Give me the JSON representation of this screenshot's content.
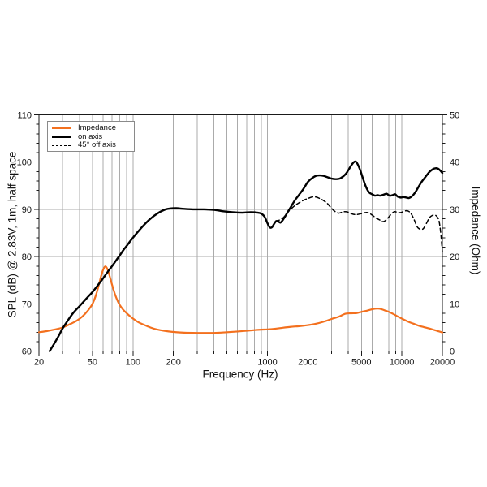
{
  "chart_data": {
    "type": "line",
    "title": "",
    "x_axis": {
      "label": "Frequency (Hz)",
      "scale": "log",
      "min": 20,
      "max": 20000,
      "major_ticks": [
        20,
        50,
        100,
        200,
        1000,
        2000,
        5000,
        10000,
        20000
      ],
      "grid_ticks": [
        30,
        40,
        50,
        60,
        70,
        80,
        90,
        100,
        200,
        300,
        400,
        500,
        600,
        700,
        800,
        900,
        1000,
        2000,
        3000,
        4000,
        5000,
        6000,
        7000,
        8000,
        9000,
        10000
      ]
    },
    "y_left": {
      "label": "SPL (dB) @ 2.83V, 1m, half space",
      "min": 60,
      "max": 110,
      "major_ticks": [
        60,
        70,
        80,
        90,
        100,
        110
      ],
      "minor_step": 2,
      "grid_lines": [
        70,
        80,
        90,
        100
      ]
    },
    "y_right": {
      "label": "Impedance (Ohm)",
      "min": 0,
      "max": 50,
      "major_ticks": [
        0,
        10,
        20,
        30,
        40,
        50
      ],
      "minor_step": 2
    },
    "legend": {
      "position": "top-left",
      "items": [
        {
          "label": "Impedance",
          "color": "#f3701e",
          "style": "solid"
        },
        {
          "label": "on axis",
          "color": "#000000",
          "style": "solid"
        },
        {
          "label": "45° off axis",
          "color": "#000000",
          "style": "dashed"
        }
      ]
    },
    "colors": {
      "impedance_curve": "#f3701e",
      "spl_curves": "#000000",
      "grid": "#ababab",
      "frame": "#1a1a1a",
      "background": "#ffffff"
    },
    "grid": true,
    "series": [
      {
        "name": "Impedance",
        "axis": "right",
        "unit": "Ohm",
        "style": "solid",
        "color": "#f3701e",
        "width": 2.2,
        "points": [
          [
            20,
            4.0
          ],
          [
            23,
            4.25
          ],
          [
            26,
            4.55
          ],
          [
            30,
            5.0
          ],
          [
            34,
            5.7
          ],
          [
            38,
            6.4
          ],
          [
            42,
            7.3
          ],
          [
            46,
            8.5
          ],
          [
            50,
            10
          ],
          [
            53,
            11.8
          ],
          [
            56,
            14.2
          ],
          [
            58,
            15.9
          ],
          [
            60,
            17.2
          ],
          [
            62,
            17.9
          ],
          [
            64,
            17.6
          ],
          [
            66,
            16.6
          ],
          [
            68,
            15.3
          ],
          [
            71,
            13.4
          ],
          [
            74,
            11.8
          ],
          [
            77,
            10.6
          ],
          [
            80,
            9.7
          ],
          [
            85,
            8.7
          ],
          [
            90,
            8.0
          ],
          [
            95,
            7.4
          ],
          [
            100,
            6.9
          ],
          [
            110,
            6.1
          ],
          [
            120,
            5.6
          ],
          [
            135,
            5.0
          ],
          [
            150,
            4.6
          ],
          [
            170,
            4.3
          ],
          [
            200,
            4.05
          ],
          [
            240,
            3.9
          ],
          [
            300,
            3.85
          ],
          [
            400,
            3.85
          ],
          [
            500,
            4.0
          ],
          [
            600,
            4.15
          ],
          [
            700,
            4.3
          ],
          [
            800,
            4.45
          ],
          [
            900,
            4.55
          ],
          [
            1000,
            4.6
          ],
          [
            1150,
            4.75
          ],
          [
            1300,
            4.95
          ],
          [
            1500,
            5.15
          ],
          [
            1750,
            5.3
          ],
          [
            2000,
            5.5
          ],
          [
            2300,
            5.8
          ],
          [
            2600,
            6.2
          ],
          [
            3000,
            6.8
          ],
          [
            3400,
            7.3
          ],
          [
            3800,
            7.9
          ],
          [
            4200,
            8.0
          ],
          [
            4600,
            8.05
          ],
          [
            5000,
            8.3
          ],
          [
            5400,
            8.5
          ],
          [
            5800,
            8.75
          ],
          [
            6200,
            8.95
          ],
          [
            6600,
            9.0
          ],
          [
            7000,
            8.9
          ],
          [
            7500,
            8.6
          ],
          [
            8000,
            8.3
          ],
          [
            8700,
            7.8
          ],
          [
            9500,
            7.2
          ],
          [
            10300,
            6.7
          ],
          [
            11200,
            6.2
          ],
          [
            12200,
            5.8
          ],
          [
            13300,
            5.4
          ],
          [
            14500,
            5.1
          ],
          [
            16000,
            4.8
          ],
          [
            17500,
            4.45
          ],
          [
            19000,
            4.15
          ],
          [
            20000,
            3.95
          ]
        ]
      },
      {
        "name": "45° off axis",
        "axis": "left",
        "unit": "dB",
        "style": "dashed",
        "color": "#000000",
        "width": 1.5,
        "points": [
          [
            1150,
            87.4
          ],
          [
            1200,
            87.6
          ],
          [
            1260,
            87.9
          ],
          [
            1320,
            88.3
          ],
          [
            1400,
            89.2
          ],
          [
            1500,
            90.1
          ],
          [
            1600,
            90.8
          ],
          [
            1700,
            91.3
          ],
          [
            1850,
            91.9
          ],
          [
            2000,
            92.3
          ],
          [
            2150,
            92.6
          ],
          [
            2300,
            92.6
          ],
          [
            2450,
            92.3
          ],
          [
            2600,
            91.9
          ],
          [
            2800,
            91.2
          ],
          [
            3000,
            90.2
          ],
          [
            3200,
            89.5
          ],
          [
            3400,
            89.2
          ],
          [
            3700,
            89.5
          ],
          [
            4000,
            89.4
          ],
          [
            4300,
            89.0
          ],
          [
            4600,
            88.9
          ],
          [
            5000,
            89.1
          ],
          [
            5300,
            89.3
          ],
          [
            5600,
            89.3
          ],
          [
            6000,
            88.8
          ],
          [
            6400,
            88.2
          ],
          [
            6800,
            87.8
          ],
          [
            7200,
            87.4
          ],
          [
            7600,
            87.7
          ],
          [
            8000,
            88.4
          ],
          [
            8400,
            89.1
          ],
          [
            8800,
            89.5
          ],
          [
            9200,
            89.4
          ],
          [
            9700,
            89.3
          ],
          [
            10200,
            89.5
          ],
          [
            10700,
            89.7
          ],
          [
            11200,
            89.6
          ],
          [
            11700,
            89.1
          ],
          [
            12300,
            87.9
          ],
          [
            13000,
            86.3
          ],
          [
            13700,
            85.8
          ],
          [
            14400,
            85.9
          ],
          [
            15200,
            87.0
          ],
          [
            16000,
            88.2
          ],
          [
            16800,
            88.7
          ],
          [
            17600,
            88.8
          ],
          [
            18300,
            88.4
          ],
          [
            18900,
            87.5
          ],
          [
            19400,
            85.3
          ],
          [
            19700,
            83.3
          ],
          [
            20000,
            81.0
          ]
        ]
      },
      {
        "name": "on axis",
        "axis": "left",
        "unit": "dB",
        "style": "solid",
        "color": "#000000",
        "width": 2.4,
        "points": [
          [
            24,
            60
          ],
          [
            26,
            61.6
          ],
          [
            28,
            63.2
          ],
          [
            30,
            64.8
          ],
          [
            33,
            66.6
          ],
          [
            36,
            68.1
          ],
          [
            40,
            69.5
          ],
          [
            45,
            71.1
          ],
          [
            50,
            72.5
          ],
          [
            55,
            74.0
          ],
          [
            60,
            75.4
          ],
          [
            65,
            76.8
          ],
          [
            70,
            78.0
          ],
          [
            75,
            79.2
          ],
          [
            80,
            80.3
          ],
          [
            85,
            81.4
          ],
          [
            90,
            82.3
          ],
          [
            95,
            83.2
          ],
          [
            100,
            84.0
          ],
          [
            110,
            85.4
          ],
          [
            120,
            86.6
          ],
          [
            130,
            87.6
          ],
          [
            140,
            88.4
          ],
          [
            150,
            89.0
          ],
          [
            160,
            89.5
          ],
          [
            175,
            90.0
          ],
          [
            190,
            90.2
          ],
          [
            210,
            90.25
          ],
          [
            240,
            90.1
          ],
          [
            280,
            90.0
          ],
          [
            330,
            90.0
          ],
          [
            400,
            89.9
          ],
          [
            470,
            89.6
          ],
          [
            550,
            89.4
          ],
          [
            650,
            89.3
          ],
          [
            750,
            89.4
          ],
          [
            850,
            89.3
          ],
          [
            900,
            89.1
          ],
          [
            950,
            88.5
          ],
          [
            1000,
            87.1
          ],
          [
            1040,
            86.2
          ],
          [
            1080,
            86.2
          ],
          [
            1120,
            86.9
          ],
          [
            1160,
            87.5
          ],
          [
            1200,
            87.5
          ],
          [
            1250,
            87.2
          ],
          [
            1320,
            88.0
          ],
          [
            1400,
            89.2
          ],
          [
            1500,
            90.6
          ],
          [
            1600,
            91.9
          ],
          [
            1700,
            92.9
          ],
          [
            1850,
            94.3
          ],
          [
            2000,
            95.8
          ],
          [
            2150,
            96.6
          ],
          [
            2300,
            97.1
          ],
          [
            2450,
            97.2
          ],
          [
            2600,
            97.1
          ],
          [
            2800,
            96.8
          ],
          [
            3000,
            96.5
          ],
          [
            3250,
            96.4
          ],
          [
            3500,
            96.6
          ],
          [
            3800,
            97.4
          ],
          [
            4000,
            98.3
          ],
          [
            4200,
            99.3
          ],
          [
            4400,
            100.0
          ],
          [
            4550,
            100.1
          ],
          [
            4700,
            99.5
          ],
          [
            4900,
            98.3
          ],
          [
            5100,
            96.8
          ],
          [
            5400,
            94.8
          ],
          [
            5700,
            93.6
          ],
          [
            6000,
            93.2
          ],
          [
            6300,
            92.9
          ],
          [
            6600,
            93.0
          ],
          [
            6900,
            92.9
          ],
          [
            7300,
            93.1
          ],
          [
            7700,
            93.3
          ],
          [
            8100,
            92.9
          ],
          [
            8500,
            93.0
          ],
          [
            8900,
            93.2
          ],
          [
            9300,
            92.7
          ],
          [
            9800,
            92.5
          ],
          [
            10300,
            92.6
          ],
          [
            10800,
            92.5
          ],
          [
            11300,
            92.4
          ],
          [
            11900,
            92.8
          ],
          [
            12500,
            93.5
          ],
          [
            13200,
            94.6
          ],
          [
            14000,
            95.8
          ],
          [
            15000,
            96.9
          ],
          [
            16000,
            97.9
          ],
          [
            17000,
            98.5
          ],
          [
            17800,
            98.7
          ],
          [
            18600,
            98.6
          ],
          [
            19300,
            98.2
          ],
          [
            20000,
            97.7
          ]
        ]
      }
    ]
  }
}
